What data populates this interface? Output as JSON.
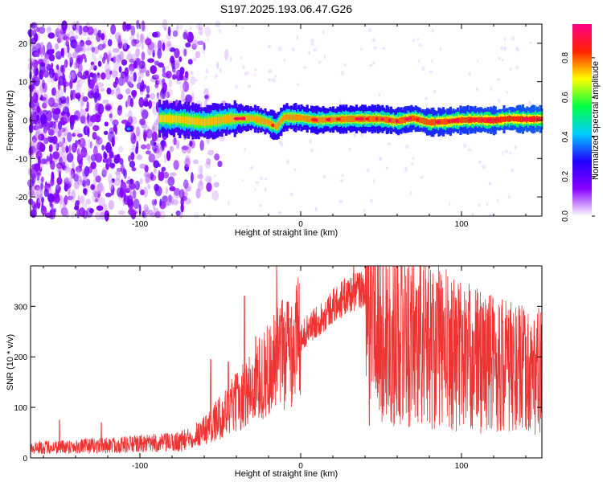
{
  "title": "S197.2025.193.06.47.G26",
  "chart_data": [
    {
      "type": "heatmap",
      "xlabel": "Height of straight line (km)",
      "ylabel": "Frequency (Hz)",
      "xlim": [
        -168,
        150
      ],
      "ylim": [
        -25,
        25
      ],
      "xticks": [
        -100,
        0,
        100
      ],
      "yticks": [
        -20,
        -10,
        0,
        10,
        20
      ],
      "colorbar": {
        "label": "Normalized spectral amplitude",
        "range": [
          0,
          0.97
        ],
        "ticks": [
          0.0,
          0.2,
          0.4,
          0.6,
          0.8
        ],
        "colors": [
          "#ffffff",
          "#8800ff",
          "#2200ff",
          "#00ccff",
          "#00ff44",
          "#ffff00",
          "#ff2200",
          "#ff0088"
        ]
      },
      "noise_region_x": [
        -168,
        -65
      ],
      "trace": {
        "x_start": -88,
        "x_end": 150,
        "path": [
          [
            -88,
            0.4
          ],
          [
            -75,
            0.2
          ],
          [
            -60,
            -0.6
          ],
          [
            -45,
            0.3
          ],
          [
            -30,
            0.5
          ],
          [
            -20,
            -0.6
          ],
          [
            -15,
            -1.8
          ],
          [
            -10,
            0.8
          ],
          [
            0,
            0.6
          ],
          [
            10,
            0.0
          ],
          [
            30,
            0.3
          ],
          [
            50,
            0.3
          ],
          [
            60,
            -0.3
          ],
          [
            70,
            0.5
          ],
          [
            80,
            -0.6
          ],
          [
            90,
            -0.4
          ],
          [
            100,
            0.0
          ],
          [
            110,
            0.1
          ],
          [
            120,
            -0.1
          ],
          [
            130,
            0.4
          ],
          [
            140,
            0.2
          ],
          [
            150,
            0.3
          ]
        ],
        "peak_amplitude": 0.97
      }
    },
    {
      "type": "line",
      "xlabel": "Height of straight line (km)",
      "ylabel": "SNR (10 * v/v)",
      "xlim": [
        -168,
        150
      ],
      "ylim": [
        0,
        380
      ],
      "xticks": [
        -100,
        0,
        100
      ],
      "yticks": [
        0,
        100,
        200,
        300
      ],
      "color": "#ee3333",
      "envelope": [
        [
          -168,
          20
        ],
        [
          -120,
          25
        ],
        [
          -80,
          30
        ],
        [
          -72,
          35
        ],
        [
          -60,
          55
        ],
        [
          -50,
          80
        ],
        [
          -40,
          110
        ],
        [
          -30,
          140
        ],
        [
          -20,
          175
        ],
        [
          -10,
          210
        ],
        [
          0,
          240
        ],
        [
          10,
          270
        ],
        [
          20,
          300
        ],
        [
          30,
          325
        ],
        [
          40,
          335
        ],
        [
          42,
          250
        ],
        [
          50,
          250
        ],
        [
          60,
          245
        ],
        [
          70,
          240
        ],
        [
          80,
          230
        ],
        [
          90,
          215
        ],
        [
          100,
          205
        ],
        [
          110,
          195
        ],
        [
          120,
          190
        ],
        [
          130,
          180
        ],
        [
          140,
          170
        ],
        [
          150,
          170
        ]
      ],
      "spikes": [
        [
          -150,
          75
        ],
        [
          -124,
          70
        ],
        [
          -56,
          195
        ],
        [
          -45,
          190
        ],
        [
          -35,
          320
        ],
        [
          -28,
          240
        ],
        [
          -15,
          380
        ],
        [
          -12,
          270
        ],
        [
          33,
          385
        ],
        [
          45,
          360
        ],
        [
          65,
          360
        ],
        [
          85,
          345
        ],
        [
          120,
          290
        ],
        [
          140,
          240
        ]
      ]
    }
  ]
}
